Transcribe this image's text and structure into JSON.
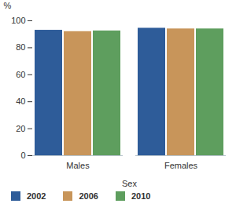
{
  "chart_data": {
    "type": "bar",
    "categories": [
      "Males",
      "Females"
    ],
    "series": [
      {
        "name": "2002",
        "color": "#2e5c99",
        "values": [
          93,
          94.5
        ]
      },
      {
        "name": "2006",
        "color": "#c8955a",
        "values": [
          92,
          94
        ]
      },
      {
        "name": "2010",
        "color": "#5e9e5e",
        "values": [
          92.5,
          94
        ]
      }
    ],
    "y_label": "%",
    "x_label": "Sex",
    "ylim": [
      0,
      100
    ],
    "yticks": [
      0,
      20,
      40,
      60,
      80,
      100
    ],
    "grid": false,
    "legend": "bottom"
  }
}
